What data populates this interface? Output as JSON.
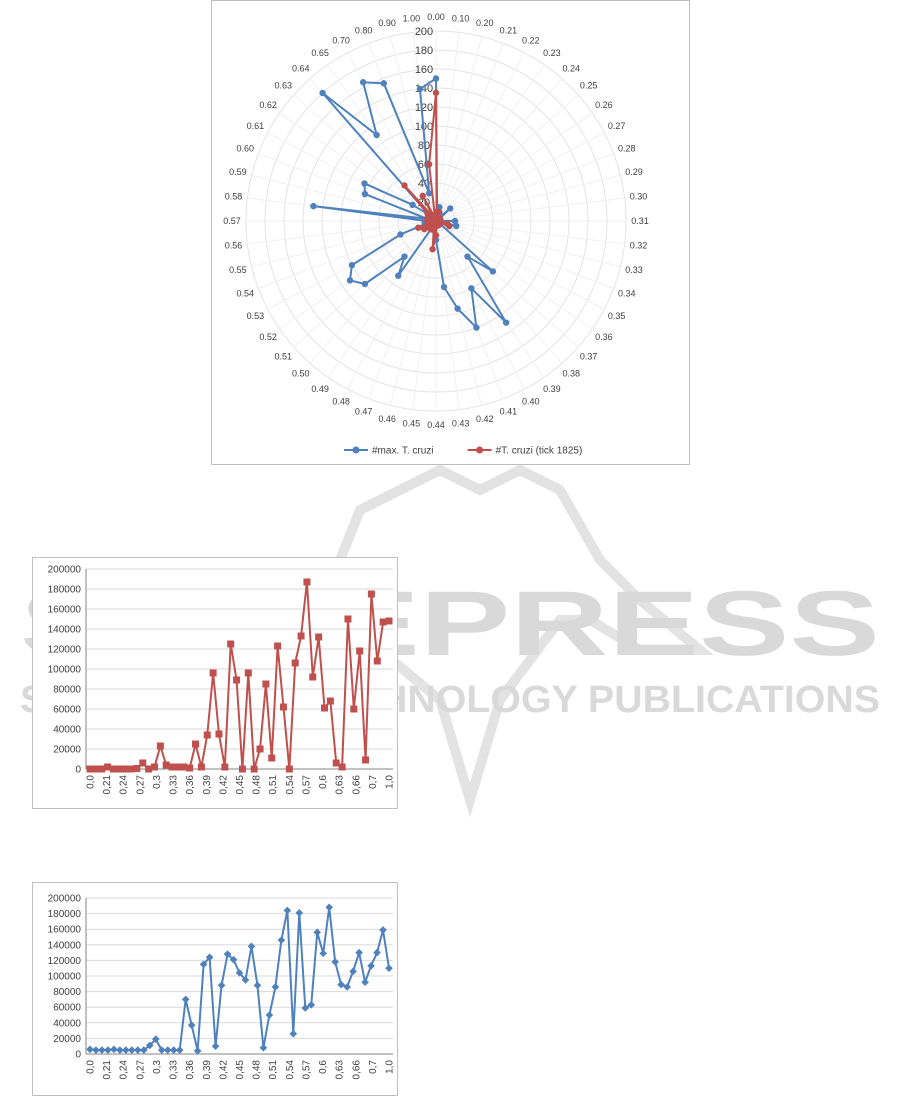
{
  "chart_data": [
    {
      "type": "radar",
      "categories": [
        "0.00",
        "0.10",
        "0.20",
        "0.21",
        "0.22",
        "0.23",
        "0.24",
        "0.25",
        "0.26",
        "0.27",
        "0.28",
        "0.29",
        "0.30",
        "0.31",
        "0.32",
        "0.33",
        "0.34",
        "0.35",
        "0.36",
        "0.37",
        "0.38",
        "0.39",
        "0.40",
        "0.41",
        "0.42",
        "0.43",
        "0.44",
        "0.45",
        "0.46",
        "0.47",
        "0.48",
        "0.49",
        "0.50",
        "0.51",
        "0.52",
        "0.53",
        "0.54",
        "0.55",
        "0.56",
        "0.57",
        "0.58",
        "0.59",
        "0.60",
        "0.61",
        "0.62",
        "0.63",
        "0.64",
        "0.65",
        "0.70",
        "0.80",
        "0.90",
        "1.00"
      ],
      "rlim": [
        0,
        200
      ],
      "r_ticks": [
        "0",
        "20",
        "40",
        "60",
        "80",
        "100",
        "120",
        "140",
        "160",
        "180",
        "200"
      ],
      "legend_position": "bottom",
      "series": [
        {
          "name": "#max. T. cruzi",
          "color": "#4f81bd",
          "values": [
            150,
            10,
            15,
            10,
            5,
            3,
            4,
            20,
            5,
            3,
            2,
            3,
            2,
            20,
            5,
            22,
            5,
            5,
            5,
            80,
            50,
            130,
            80,
            120,
            95,
            70,
            20,
            5,
            5,
            5,
            5,
            70,
            50,
            100,
            110,
            100,
            40,
            10,
            12,
            10,
            130,
            10,
            80,
            85,
            30,
            10,
            180,
            110,
            165,
            155,
            30,
            140
          ]
        },
        {
          "name": "#T. cruzi (tick 1825)",
          "color": "#c0504d",
          "values": [
            135,
            5,
            10,
            5,
            5,
            3,
            4,
            2,
            5,
            2,
            3,
            3,
            2,
            5,
            3,
            12,
            15,
            3,
            3,
            5,
            5,
            5,
            5,
            5,
            5,
            5,
            15,
            30,
            10,
            5,
            10,
            10,
            5,
            10,
            15,
            10,
            20,
            5,
            5,
            5,
            10,
            5,
            5,
            5,
            5,
            12,
            50,
            5,
            30,
            5,
            5,
            60
          ]
        }
      ]
    },
    {
      "type": "line",
      "xlabels": [
        "0,0",
        "0,21",
        "0,24",
        "0,27",
        "0,3",
        "0,33",
        "0,36",
        "0,39",
        "0,42",
        "0,45",
        "0,48",
        "0,51",
        "0,54",
        "0,57",
        "0,6",
        "0,63",
        "0,66",
        "0,7",
        "1,0"
      ],
      "ylim": [
        0,
        200000
      ],
      "y_ticks": [
        "0",
        "20000",
        "40000",
        "60000",
        "80000",
        "100000",
        "120000",
        "140000",
        "160000",
        "180000",
        "200000"
      ],
      "series": [
        {
          "color": "#c0504d",
          "marker": "square",
          "values": [
            0,
            0,
            0,
            2000,
            0,
            0,
            0,
            0,
            500,
            6000,
            0,
            2000,
            23000,
            4000,
            2000,
            2000,
            2000,
            1000,
            25000,
            2000,
            34000,
            96000,
            35000,
            2000,
            125000,
            89000,
            0,
            96000,
            0,
            20000,
            85000,
            11000,
            123000,
            62000,
            0,
            106000,
            133000,
            187000,
            92000,
            132000,
            61000,
            68000,
            6000,
            2000,
            150000,
            60000,
            118000,
            9000,
            175000,
            108000,
            147000,
            148000
          ]
        }
      ]
    },
    {
      "type": "line",
      "xlabels": [
        "0,0",
        "0,21",
        "0,24",
        "0,27",
        "0,3",
        "0,33",
        "0,36",
        "0,39",
        "0,42",
        "0,45",
        "0,48",
        "0,51",
        "0,54",
        "0,57",
        "0,6",
        "0,63",
        "0,66",
        "0,7",
        "1,0"
      ],
      "ylim": [
        0,
        200000
      ],
      "y_ticks": [
        "0",
        "20000",
        "40000",
        "60000",
        "80000",
        "100000",
        "120000",
        "140000",
        "160000",
        "180000",
        "200000"
      ],
      "series": [
        {
          "color": "#4f81bd",
          "marker": "diamond",
          "values": [
            6000,
            5000,
            5000,
            5000,
            6000,
            5000,
            5000,
            5000,
            5000,
            5000,
            11000,
            19000,
            5000,
            5000,
            5000,
            5000,
            70000,
            37000,
            4000,
            115000,
            124000,
            10000,
            88000,
            128000,
            121000,
            104000,
            95000,
            138000,
            88000,
            8000,
            50000,
            86000,
            146000,
            184000,
            26000,
            181000,
            59000,
            63000,
            156000,
            129000,
            188000,
            118000,
            89000,
            86000,
            106000,
            130000,
            92000,
            113000,
            130000,
            159000,
            110000
          ]
        }
      ]
    }
  ],
  "watermark": {
    "line1": "SCITEPRESS",
    "line2": "SCIENCE AND TECHNOLOGY PUBLICATIONS"
  }
}
